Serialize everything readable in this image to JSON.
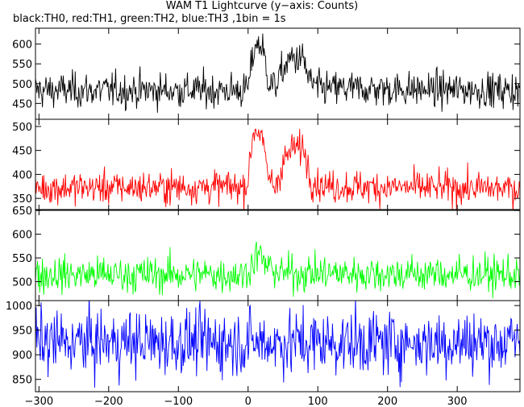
{
  "chart_data": {
    "type": "line",
    "title": "WAM T1 Lightcurve (y−axis: Counts)",
    "subtitle": "black:TH0, red:TH1, green:TH2, blue:TH3 ,1bin = 1s",
    "x_range": [
      -305,
      390
    ],
    "x_ticks": [
      -300,
      -200,
      -100,
      0,
      100,
      200,
      300
    ],
    "bin_seconds": 1,
    "grid": false,
    "legend": "none",
    "series": [
      {
        "name": "TH0",
        "color": "#000000",
        "ylim": [
          410,
          640
        ],
        "y_ticks": [
          450,
          500,
          550,
          600
        ],
        "baseline": 483,
        "noise_sigma": 22,
        "profile": [
          {
            "x": -305,
            "value": 483
          },
          {
            "x": -5,
            "value": 483
          },
          {
            "x": 0,
            "value": 490
          },
          {
            "x": 10,
            "value": 600
          },
          {
            "x": 20,
            "value": 595
          },
          {
            "x": 30,
            "value": 505
          },
          {
            "x": 38,
            "value": 492
          },
          {
            "x": 52,
            "value": 540
          },
          {
            "x": 62,
            "value": 565
          },
          {
            "x": 80,
            "value": 560
          },
          {
            "x": 87,
            "value": 510
          },
          {
            "x": 100,
            "value": 488
          },
          {
            "x": 390,
            "value": 483
          }
        ]
      },
      {
        "name": "TH1",
        "color": "#ff0000",
        "ylim": [
          325,
          515
        ],
        "y_ticks": [
          350,
          400,
          450,
          500
        ],
        "baseline": 372,
        "noise_sigma": 17,
        "profile": [
          {
            "x": -305,
            "value": 372
          },
          {
            "x": -5,
            "value": 374
          },
          {
            "x": 0,
            "value": 390
          },
          {
            "x": 8,
            "value": 495
          },
          {
            "x": 18,
            "value": 490
          },
          {
            "x": 28,
            "value": 400
          },
          {
            "x": 38,
            "value": 372
          },
          {
            "x": 52,
            "value": 430
          },
          {
            "x": 65,
            "value": 455
          },
          {
            "x": 80,
            "value": 455
          },
          {
            "x": 90,
            "value": 390
          },
          {
            "x": 110,
            "value": 375
          },
          {
            "x": 390,
            "value": 370
          }
        ]
      },
      {
        "name": "TH2",
        "color": "#00ff00",
        "ylim": [
          460,
          652
        ],
        "y_ticks": [
          500,
          550,
          600,
          650
        ],
        "baseline": 515,
        "noise_sigma": 19,
        "profile": [
          {
            "x": -305,
            "value": 515
          },
          {
            "x": -5,
            "value": 515
          },
          {
            "x": 5,
            "value": 535
          },
          {
            "x": 15,
            "value": 560
          },
          {
            "x": 25,
            "value": 535
          },
          {
            "x": 45,
            "value": 518
          },
          {
            "x": 390,
            "value": 515
          }
        ]
      },
      {
        "name": "TH3",
        "color": "#0000ff",
        "ylim": [
          825,
          1010
        ],
        "y_ticks": [
          850,
          900,
          950,
          1000
        ],
        "baseline": 925,
        "noise_sigma": 33,
        "profile": [
          {
            "x": -305,
            "value": 925
          },
          {
            "x": 390,
            "value": 925
          }
        ]
      }
    ]
  }
}
